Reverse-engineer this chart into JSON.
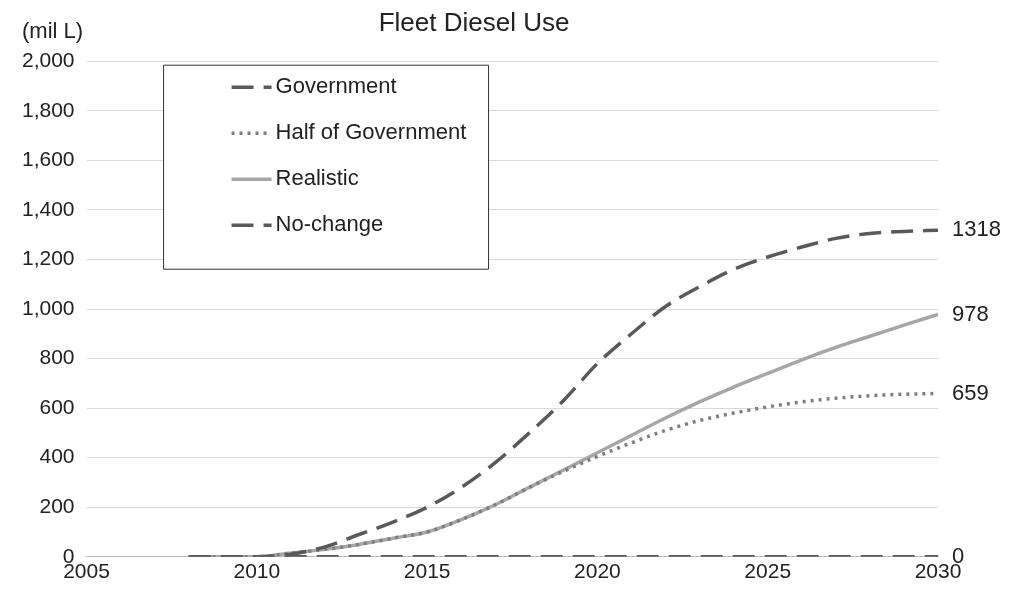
{
  "chart_data": {
    "type": "line",
    "title": "Fleet Diesel Use",
    "ylabel": "(mil L)",
    "x": [
      2008,
      2009,
      2010,
      2011,
      2012,
      2013,
      2014,
      2015,
      2016,
      2017,
      2018,
      2019,
      2020,
      2021,
      2022,
      2023,
      2024,
      2025,
      2026,
      2027,
      2028,
      2029,
      2030
    ],
    "series": [
      {
        "name": "Government",
        "color": "#595959",
        "line_style": "dashed",
        "values": [
          0,
          0,
          0,
          10,
          40,
          90,
          140,
          200,
          280,
          380,
          500,
          630,
          780,
          900,
          1010,
          1090,
          1160,
          1210,
          1250,
          1285,
          1305,
          1313,
          1318
        ],
        "value_labels": [
          null,
          null,
          null,
          null,
          null,
          null,
          null,
          null,
          null,
          null,
          null,
          null,
          null,
          null,
          null,
          null,
          null,
          null,
          null,
          null,
          null,
          null,
          "1318"
        ]
      },
      {
        "name": "Half of Government",
        "color": "#7f7f7f",
        "line_style": "dotted",
        "values": [
          0,
          0,
          0,
          15,
          30,
          50,
          75,
          100,
          150,
          210,
          280,
          345,
          405,
          460,
          510,
          550,
          580,
          605,
          625,
          640,
          650,
          656,
          659
        ],
        "value_labels": [
          null,
          null,
          null,
          null,
          null,
          null,
          null,
          null,
          null,
          null,
          null,
          null,
          null,
          null,
          null,
          null,
          null,
          null,
          null,
          null,
          null,
          null,
          "659"
        ]
      },
      {
        "name": "Realistic",
        "color": "#a6a6a6",
        "line_style": "solid",
        "values": [
          0,
          0,
          0,
          15,
          30,
          50,
          75,
          100,
          150,
          210,
          280,
          350,
          420,
          490,
          560,
          625,
          685,
          740,
          795,
          845,
          890,
          935,
          978
        ],
        "value_labels": [
          null,
          null,
          null,
          null,
          null,
          null,
          null,
          null,
          null,
          null,
          null,
          null,
          null,
          null,
          null,
          null,
          null,
          null,
          null,
          null,
          null,
          null,
          "978"
        ]
      },
      {
        "name": "No-change",
        "color": "#595959",
        "line_style": "dashed",
        "values": [
          0,
          0,
          0,
          0,
          0,
          0,
          0,
          0,
          0,
          0,
          0,
          0,
          0,
          0,
          0,
          0,
          0,
          0,
          0,
          0,
          0,
          0,
          0
        ],
        "value_labels": [
          null,
          null,
          null,
          null,
          null,
          null,
          null,
          null,
          null,
          null,
          null,
          null,
          null,
          null,
          null,
          null,
          null,
          null,
          null,
          null,
          null,
          null,
          "0"
        ]
      }
    ],
    "xlim": [
      2005,
      2030
    ],
    "xticks": [
      2005,
      2010,
      2015,
      2020,
      2025,
      2030
    ],
    "ylim": [
      0,
      2000
    ],
    "yticks": [
      0,
      200,
      400,
      600,
      800,
      {
        "value": 1000,
        "label": "1,000"
      },
      {
        "value": 1200,
        "label": "1,200"
      },
      {
        "value": 1400,
        "label": "1,400"
      },
      {
        "value": 1600,
        "label": "1,600"
      },
      {
        "value": 1800,
        "label": "1,800"
      },
      {
        "value": 2000,
        "label": "2,000"
      }
    ],
    "grid": "y",
    "legend": "top left",
    "marker": "none"
  }
}
